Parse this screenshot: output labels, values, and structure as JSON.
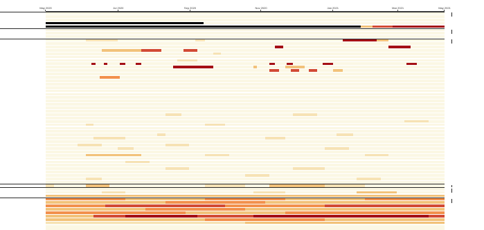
{
  "axis": {
    "ticks": [
      {
        "label": "May 2020",
        "pos": 0
      },
      {
        "label": "Jul 2020",
        "pos": 0.182
      },
      {
        "label": "Sep 2020",
        "pos": 0.362
      },
      {
        "label": "Nov 2020",
        "pos": 0.54
      },
      {
        "label": "Jan 2021",
        "pos": 0.72
      },
      {
        "label": "Mar 2021",
        "pos": 0.883
      },
      {
        "label": "May 2021",
        "pos": 1.0
      }
    ]
  },
  "groups": [
    {
      "label": "",
      "rows": [
        0,
        4
      ]
    },
    {
      "label": "",
      "rows": [
        5,
        7
      ]
    },
    {
      "label": "",
      "rows": [
        8,
        50
      ]
    },
    {
      "label": "",
      "rows": [
        51,
        51
      ]
    },
    {
      "label": "",
      "rows": [
        52,
        54
      ]
    },
    {
      "label": "",
      "rows": [
        55,
        63
      ]
    }
  ],
  "rows": [
    {
      "label": "",
      "runs": []
    },
    {
      "label": "",
      "runs": []
    },
    {
      "label": "",
      "runs": []
    },
    {
      "label": "",
      "runs": [
        [
          0,
          0.395,
          "#000000"
        ]
      ]
    },
    {
      "label": "",
      "runs": [
        [
          0,
          0.79,
          "#000000"
        ],
        [
          0.79,
          0.82,
          "#f2c27a"
        ],
        [
          0.82,
          0.87,
          "#d24a34"
        ],
        [
          0.87,
          1.0,
          "#a40f15"
        ]
      ]
    },
    {
      "label": "",
      "runs": []
    },
    {
      "label": "",
      "runs": []
    },
    {
      "label": "",
      "runs": []
    },
    {
      "label": "",
      "runs": [
        [
          0.1,
          0.18,
          "#f6e2b4"
        ],
        [
          0.375,
          0.4,
          "#f6e2b4"
        ],
        [
          0.745,
          0.83,
          "#a40f15"
        ],
        [
          0.83,
          0.86,
          "#f2c27a"
        ]
      ]
    },
    {
      "label": "",
      "runs": []
    },
    {
      "label": "",
      "runs": [
        [
          0.575,
          0.595,
          "#a40f15"
        ],
        [
          0.86,
          0.915,
          "#a40f15"
        ]
      ]
    },
    {
      "label": "",
      "runs": [
        [
          0.14,
          0.24,
          "#f2c27a"
        ],
        [
          0.24,
          0.29,
          "#d24a34"
        ],
        [
          0.345,
          0.38,
          "#d24a34"
        ]
      ]
    },
    {
      "label": "",
      "runs": [
        [
          0.42,
          0.44,
          "#f6e2b4"
        ]
      ]
    },
    {
      "label": "",
      "runs": []
    },
    {
      "label": "",
      "runs": [
        [
          0.33,
          0.38,
          "#f6e2b4"
        ]
      ]
    },
    {
      "label": "",
      "runs": [
        [
          0.115,
          0.125,
          "#a40f15"
        ],
        [
          0.145,
          0.155,
          "#a40f15"
        ],
        [
          0.185,
          0.2,
          "#a40f15"
        ],
        [
          0.225,
          0.24,
          "#a40f15"
        ],
        [
          0.56,
          0.575,
          "#a40f15"
        ],
        [
          0.605,
          0.62,
          "#a40f15"
        ],
        [
          0.695,
          0.72,
          "#a40f15"
        ],
        [
          0.905,
          0.93,
          "#a40f15"
        ]
      ]
    },
    {
      "label": "",
      "runs": [
        [
          0.32,
          0.42,
          "#a40f15"
        ],
        [
          0.52,
          0.53,
          "#f2c27a"
        ],
        [
          0.6,
          0.65,
          "#f2c27a"
        ]
      ]
    },
    {
      "label": "",
      "runs": [
        [
          0.56,
          0.585,
          "#d24a34"
        ],
        [
          0.615,
          0.635,
          "#d24a34"
        ],
        [
          0.66,
          0.68,
          "#d24a34"
        ],
        [
          0.72,
          0.745,
          "#f2c27a"
        ]
      ]
    },
    {
      "label": "",
      "runs": []
    },
    {
      "label": "",
      "runs": [
        [
          0.135,
          0.185,
          "#f2904c"
        ]
      ]
    },
    {
      "label": "",
      "runs": []
    },
    {
      "label": "",
      "runs": []
    },
    {
      "label": "",
      "runs": []
    },
    {
      "label": "",
      "runs": []
    },
    {
      "label": "",
      "runs": []
    },
    {
      "label": "",
      "runs": []
    },
    {
      "label": "",
      "runs": []
    },
    {
      "label": "",
      "runs": []
    },
    {
      "label": "",
      "runs": []
    },
    {
      "label": "",
      "runs": []
    },
    {
      "label": "",
      "runs": [
        [
          0.3,
          0.34,
          "#f6e2b4"
        ],
        [
          0.62,
          0.68,
          "#f6e2b4"
        ]
      ]
    },
    {
      "label": "",
      "runs": []
    },
    {
      "label": "",
      "runs": [
        [
          0.9,
          0.96,
          "#f6e2b4"
        ]
      ]
    },
    {
      "label": "",
      "runs": [
        [
          0.1,
          0.12,
          "#f6e2b4"
        ],
        [
          0.4,
          0.45,
          "#f6e2b4"
        ]
      ]
    },
    {
      "label": "",
      "runs": []
    },
    {
      "label": "",
      "runs": []
    },
    {
      "label": "",
      "runs": [
        [
          0.28,
          0.3,
          "#f6e2b4"
        ],
        [
          0.73,
          0.77,
          "#f6e2b4"
        ]
      ]
    },
    {
      "label": "",
      "runs": [
        [
          0.12,
          0.2,
          "#f6e2b4"
        ],
        [
          0.55,
          0.6,
          "#f6e2b4"
        ]
      ]
    },
    {
      "label": "",
      "runs": []
    },
    {
      "label": "",
      "runs": [
        [
          0.08,
          0.14,
          "#f6e2b4"
        ],
        [
          0.3,
          0.36,
          "#f6e2b4"
        ]
      ]
    },
    {
      "label": "",
      "runs": [
        [
          0.18,
          0.22,
          "#f6e2b4"
        ],
        [
          0.7,
          0.76,
          "#f6e2b4"
        ]
      ]
    },
    {
      "label": "",
      "runs": []
    },
    {
      "label": "",
      "runs": [
        [
          0.1,
          0.24,
          "#f2c27a"
        ],
        [
          0.4,
          0.46,
          "#f6e2b4"
        ],
        [
          0.8,
          0.86,
          "#f6e2b4"
        ]
      ]
    },
    {
      "label": "",
      "runs": []
    },
    {
      "label": "",
      "runs": [
        [
          0.2,
          0.26,
          "#f6e2b4"
        ]
      ]
    },
    {
      "label": "",
      "runs": []
    },
    {
      "label": "",
      "runs": [
        [
          0.3,
          0.36,
          "#f6e2b4"
        ],
        [
          0.62,
          0.7,
          "#f6e2b4"
        ]
      ]
    },
    {
      "label": "",
      "runs": []
    },
    {
      "label": "",
      "runs": [
        [
          0.5,
          0.56,
          "#f6e2b4"
        ]
      ]
    },
    {
      "label": "",
      "runs": [
        [
          0.1,
          0.14,
          "#f6e2b4"
        ],
        [
          0.78,
          0.84,
          "#f6e2b4"
        ]
      ]
    },
    {
      "label": "",
      "runs": []
    },
    {
      "label": "",
      "runs": [
        [
          0.0,
          0.02,
          "#f6e2b4"
        ],
        [
          0.1,
          0.16,
          "#f2c27a"
        ],
        [
          0.4,
          0.5,
          "#f6e2b4"
        ],
        [
          0.56,
          0.7,
          "#f2c27a"
        ],
        [
          0.7,
          0.8,
          "#f6e2b4"
        ]
      ]
    },
    {
      "label": "",
      "runs": []
    },
    {
      "label": "",
      "runs": [
        [
          0.14,
          0.2,
          "#f6e2b4"
        ],
        [
          0.52,
          0.6,
          "#f6e2b4"
        ],
        [
          0.78,
          0.88,
          "#f2c27a"
        ]
      ]
    },
    {
      "label": "",
      "runs": [
        [
          0.0,
          1.0,
          "#f2c27a"
        ]
      ]
    },
    {
      "label": "",
      "runs": [
        [
          0.0,
          0.2,
          "#f2904c"
        ],
        [
          0.2,
          0.4,
          "#f2c27a"
        ],
        [
          0.4,
          0.6,
          "#f2904c"
        ],
        [
          0.6,
          0.8,
          "#f2c27a"
        ],
        [
          0.8,
          1.0,
          "#f2904c"
        ]
      ]
    },
    {
      "label": "",
      "runs": [
        [
          0.0,
          0.3,
          "#f2c27a"
        ],
        [
          0.3,
          0.55,
          "#f2904c"
        ],
        [
          0.55,
          1.0,
          "#f2c27a"
        ]
      ]
    },
    {
      "label": "",
      "runs": [
        [
          0.0,
          0.15,
          "#f2904c"
        ],
        [
          0.15,
          0.45,
          "#d24a34"
        ],
        [
          0.45,
          0.7,
          "#f2904c"
        ],
        [
          0.7,
          1.0,
          "#d24a34"
        ]
      ]
    },
    {
      "label": "",
      "runs": [
        [
          0.0,
          0.25,
          "#f2c27a"
        ],
        [
          0.25,
          0.5,
          "#f2904c"
        ],
        [
          0.5,
          1.0,
          "#f2c27a"
        ]
      ]
    },
    {
      "label": "",
      "runs": [
        [
          0.0,
          0.35,
          "#f2904c"
        ],
        [
          0.35,
          0.6,
          "#f2c27a"
        ],
        [
          0.6,
          1.0,
          "#f2904c"
        ]
      ]
    },
    {
      "label": "",
      "runs": [
        [
          0.0,
          0.12,
          "#f2c27a"
        ],
        [
          0.12,
          0.2,
          "#d24a34"
        ],
        [
          0.2,
          0.38,
          "#a40f15"
        ],
        [
          0.38,
          0.52,
          "#d24a34"
        ],
        [
          0.52,
          0.96,
          "#a40f15"
        ],
        [
          0.96,
          1.0,
          "#d24a34"
        ]
      ]
    },
    {
      "label": "",
      "runs": [
        [
          0.0,
          0.4,
          "#f2c27a"
        ],
        [
          0.4,
          0.7,
          "#f2904c"
        ],
        [
          0.7,
          1.0,
          "#f2c27a"
        ]
      ]
    },
    {
      "label": "",
      "runs": [
        [
          0.0,
          0.5,
          "#f6e2b4"
        ],
        [
          0.5,
          1.0,
          "#f2c27a"
        ]
      ]
    }
  ]
}
